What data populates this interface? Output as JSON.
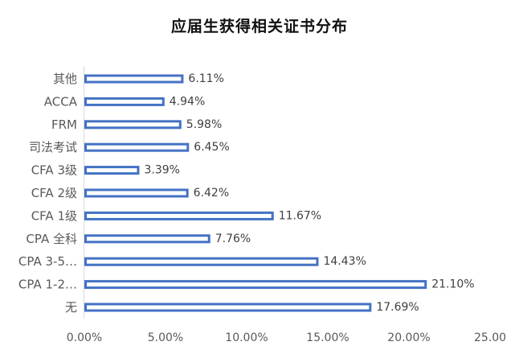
{
  "chart_data": {
    "type": "bar",
    "orientation": "horizontal",
    "title": "应届生获得相关证书分布",
    "categories": [
      "其他",
      "ACCA",
      "FRM",
      "司法考试",
      "CFA 3级",
      "CFA 2级",
      "CFA 1级",
      "CPA 全科",
      "CPA 3-5…",
      "CPA 1-2…",
      "无"
    ],
    "values": [
      6.11,
      4.94,
      5.98,
      6.45,
      3.39,
      6.42,
      11.67,
      7.76,
      14.43,
      21.1,
      17.69
    ],
    "value_labels": [
      "6.11%",
      "4.94%",
      "5.98%",
      "6.45%",
      "3.39%",
      "6.42%",
      "11.67%",
      "7.76%",
      "14.43%",
      "21.10%",
      "17.69%"
    ],
    "xlim": [
      0,
      25
    ],
    "xticks": [
      0,
      5,
      10,
      15,
      20,
      25
    ],
    "xtick_labels": [
      "0.00%",
      "5.00%",
      "10.00%",
      "15.00%",
      "20.00%",
      "25.00"
    ],
    "grid": false,
    "legend": "none",
    "bar_color": "#4472C4",
    "bar_fill": "#ffffff"
  }
}
